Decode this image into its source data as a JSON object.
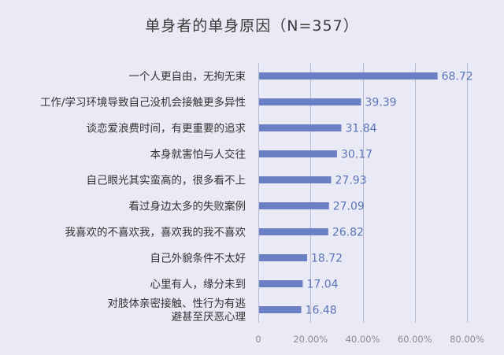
{
  "chart_data": {
    "type": "bar",
    "orientation": "horizontal",
    "title": "单身者的单身原因（N=357）",
    "categories": [
      "一个人更自由，无拘无束",
      "工作/学习环境导致自己没机会接触更多异性",
      "谈恋爱浪费时间，有更重要的追求",
      "本身就害怕与人交往",
      "自己眼光其实蛮高的，很多看不上",
      "看过身边太多的失败案例",
      "我喜欢的不喜欢我，喜欢我的我不喜欢",
      "自己外貌条件不太好",
      "心里有人，缘分未到",
      "对肢体亲密接触、性行为有逃避甚至厌恶心理"
    ],
    "category_lines": [
      [
        "一个人更自由，无拘无束"
      ],
      [
        "工作/学习环境导致自己没机会接触更多异性"
      ],
      [
        "谈恋爱浪费时间，有更重要的追求"
      ],
      [
        "本身就害怕与人交往"
      ],
      [
        "自己眼光其实蛮高的，很多看不上"
      ],
      [
        "看过身边太多的失败案例"
      ],
      [
        "我喜欢的不喜欢我，喜欢我的我不喜欢"
      ],
      [
        "自己外貌条件不太好"
      ],
      [
        "心里有人，缘分未到"
      ],
      [
        "对肢体亲密接触、性行为有逃",
        "避甚至厌恶心理"
      ]
    ],
    "values": [
      68.72,
      39.39,
      31.84,
      30.17,
      27.93,
      27.09,
      26.82,
      18.72,
      17.04,
      16.48
    ],
    "value_labels": [
      "68.72",
      "39.39",
      "31.84",
      "30.17",
      "27.93",
      "27.09",
      "26.82",
      "18.72",
      "17.04",
      "16.48"
    ],
    "xlim": [
      0,
      80
    ],
    "xticks": [
      0,
      20,
      40,
      60,
      80
    ],
    "xtick_labels": [
      "0",
      "20.00%",
      "40.00%",
      "60.00%",
      "80.00%"
    ],
    "grid": true,
    "legend": "none",
    "colors": {
      "bar": "#6b80c4",
      "value_label": "#5b74b8",
      "gridline": "#b9bdd4",
      "background": "#e9eaf5"
    }
  }
}
